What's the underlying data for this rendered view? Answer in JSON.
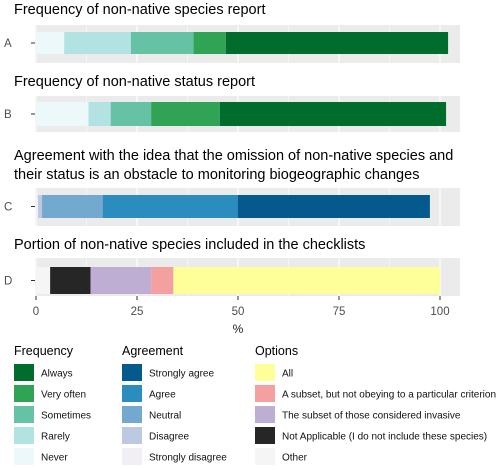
{
  "chart_data": {
    "type": "bar",
    "orientation": "horizontal",
    "stacked": true,
    "xlabel": "%",
    "xlim": [
      0,
      100
    ],
    "xticks": [
      "0",
      "25",
      "50",
      "75",
      "100"
    ],
    "grid": true,
    "panels": [
      {
        "category": "A",
        "title": [
          "Frequency of non-native species report"
        ],
        "segments": [
          {
            "name": "Never",
            "value": 7
          },
          {
            "name": "Rarely",
            "value": 16.5
          },
          {
            "name": "Sometimes",
            "value": 15.5
          },
          {
            "name": "Very often",
            "value": 8
          },
          {
            "name": "Always",
            "value": 55
          }
        ]
      },
      {
        "category": "B",
        "title": [
          "Frequency of non-native status report"
        ],
        "segments": [
          {
            "name": "Never",
            "value": 13
          },
          {
            "name": "Rarely",
            "value": 5.5
          },
          {
            "name": "Sometimes",
            "value": 10
          },
          {
            "name": "Very often",
            "value": 17
          },
          {
            "name": "Always",
            "value": 56
          }
        ]
      },
      {
        "category": "C",
        "title": [
          "Agreement with the idea that the omission of non-native species and",
          "their status is an obstacle to monitoring biogeographic changes"
        ],
        "segments": [
          {
            "name": "Strongly disagree",
            "value": 0.5
          },
          {
            "name": "Disagree",
            "value": 1
          },
          {
            "name": "Neutral",
            "value": 15
          },
          {
            "name": "Agree",
            "value": 33.5
          },
          {
            "name": "Strongly agree",
            "value": 47.5
          }
        ]
      },
      {
        "category": "D",
        "title": [
          "Portion of non-native species included in the checklists"
        ],
        "segments": [
          {
            "name": "Other",
            "value": 3.5
          },
          {
            "name": "Not Applicable (I do not include these species)",
            "value": 10
          },
          {
            "name": "The subset of those considered invasive",
            "value": 15
          },
          {
            "name": "A subset, but not obeying to a particular criterion",
            "value": 5.5
          },
          {
            "name": "All",
            "value": 66
          }
        ]
      }
    ],
    "legends": [
      {
        "title": "Frequency",
        "items": [
          {
            "label": "Always",
            "color": "#006d2c"
          },
          {
            "label": "Very often",
            "color": "#31a354"
          },
          {
            "label": "Sometimes",
            "color": "#66c2a4"
          },
          {
            "label": "Rarely",
            "color": "#b2e2e2"
          },
          {
            "label": "Never",
            "color": "#edf8fb"
          }
        ]
      },
      {
        "title": "Agreement",
        "items": [
          {
            "label": "Strongly agree",
            "color": "#045a8d"
          },
          {
            "label": "Agree",
            "color": "#2b8cbe"
          },
          {
            "label": "Neutral",
            "color": "#74a9cf"
          },
          {
            "label": "Disagree",
            "color": "#bdc9e1"
          },
          {
            "label": "Strongly disagree",
            "color": "#f1eef6"
          }
        ]
      },
      {
        "title": "Options",
        "items": [
          {
            "label": "All",
            "color": "#ffff99"
          },
          {
            "label": "A subset, but not obeying to a particular criterion",
            "color": "#f4a0a0"
          },
          {
            "label": "The subset of those considered invasive",
            "color": "#beaed4"
          },
          {
            "label": "Not Applicable (I do not include these species)",
            "color": "#262626"
          },
          {
            "label": "Other",
            "color": "#f5f5f5"
          }
        ]
      }
    ],
    "colors": {
      "Never": "#edf8fb",
      "Rarely": "#b2e2e2",
      "Sometimes": "#66c2a4",
      "Very often": "#31a354",
      "Always": "#006d2c",
      "Strongly disagree": "#f1eef6",
      "Disagree": "#bdc9e1",
      "Neutral": "#74a9cf",
      "Agree": "#2b8cbe",
      "Strongly agree": "#045a8d",
      "Other": "#f5f5f5",
      "Not Applicable (I do not include these species)": "#262626",
      "The subset of those considered invasive": "#beaed4",
      "A subset, but not obeying to a particular criterion": "#f4a0a0",
      "All": "#ffff99",
      "panel_background": "#ebebeb",
      "gridline": "#ffffff"
    }
  }
}
